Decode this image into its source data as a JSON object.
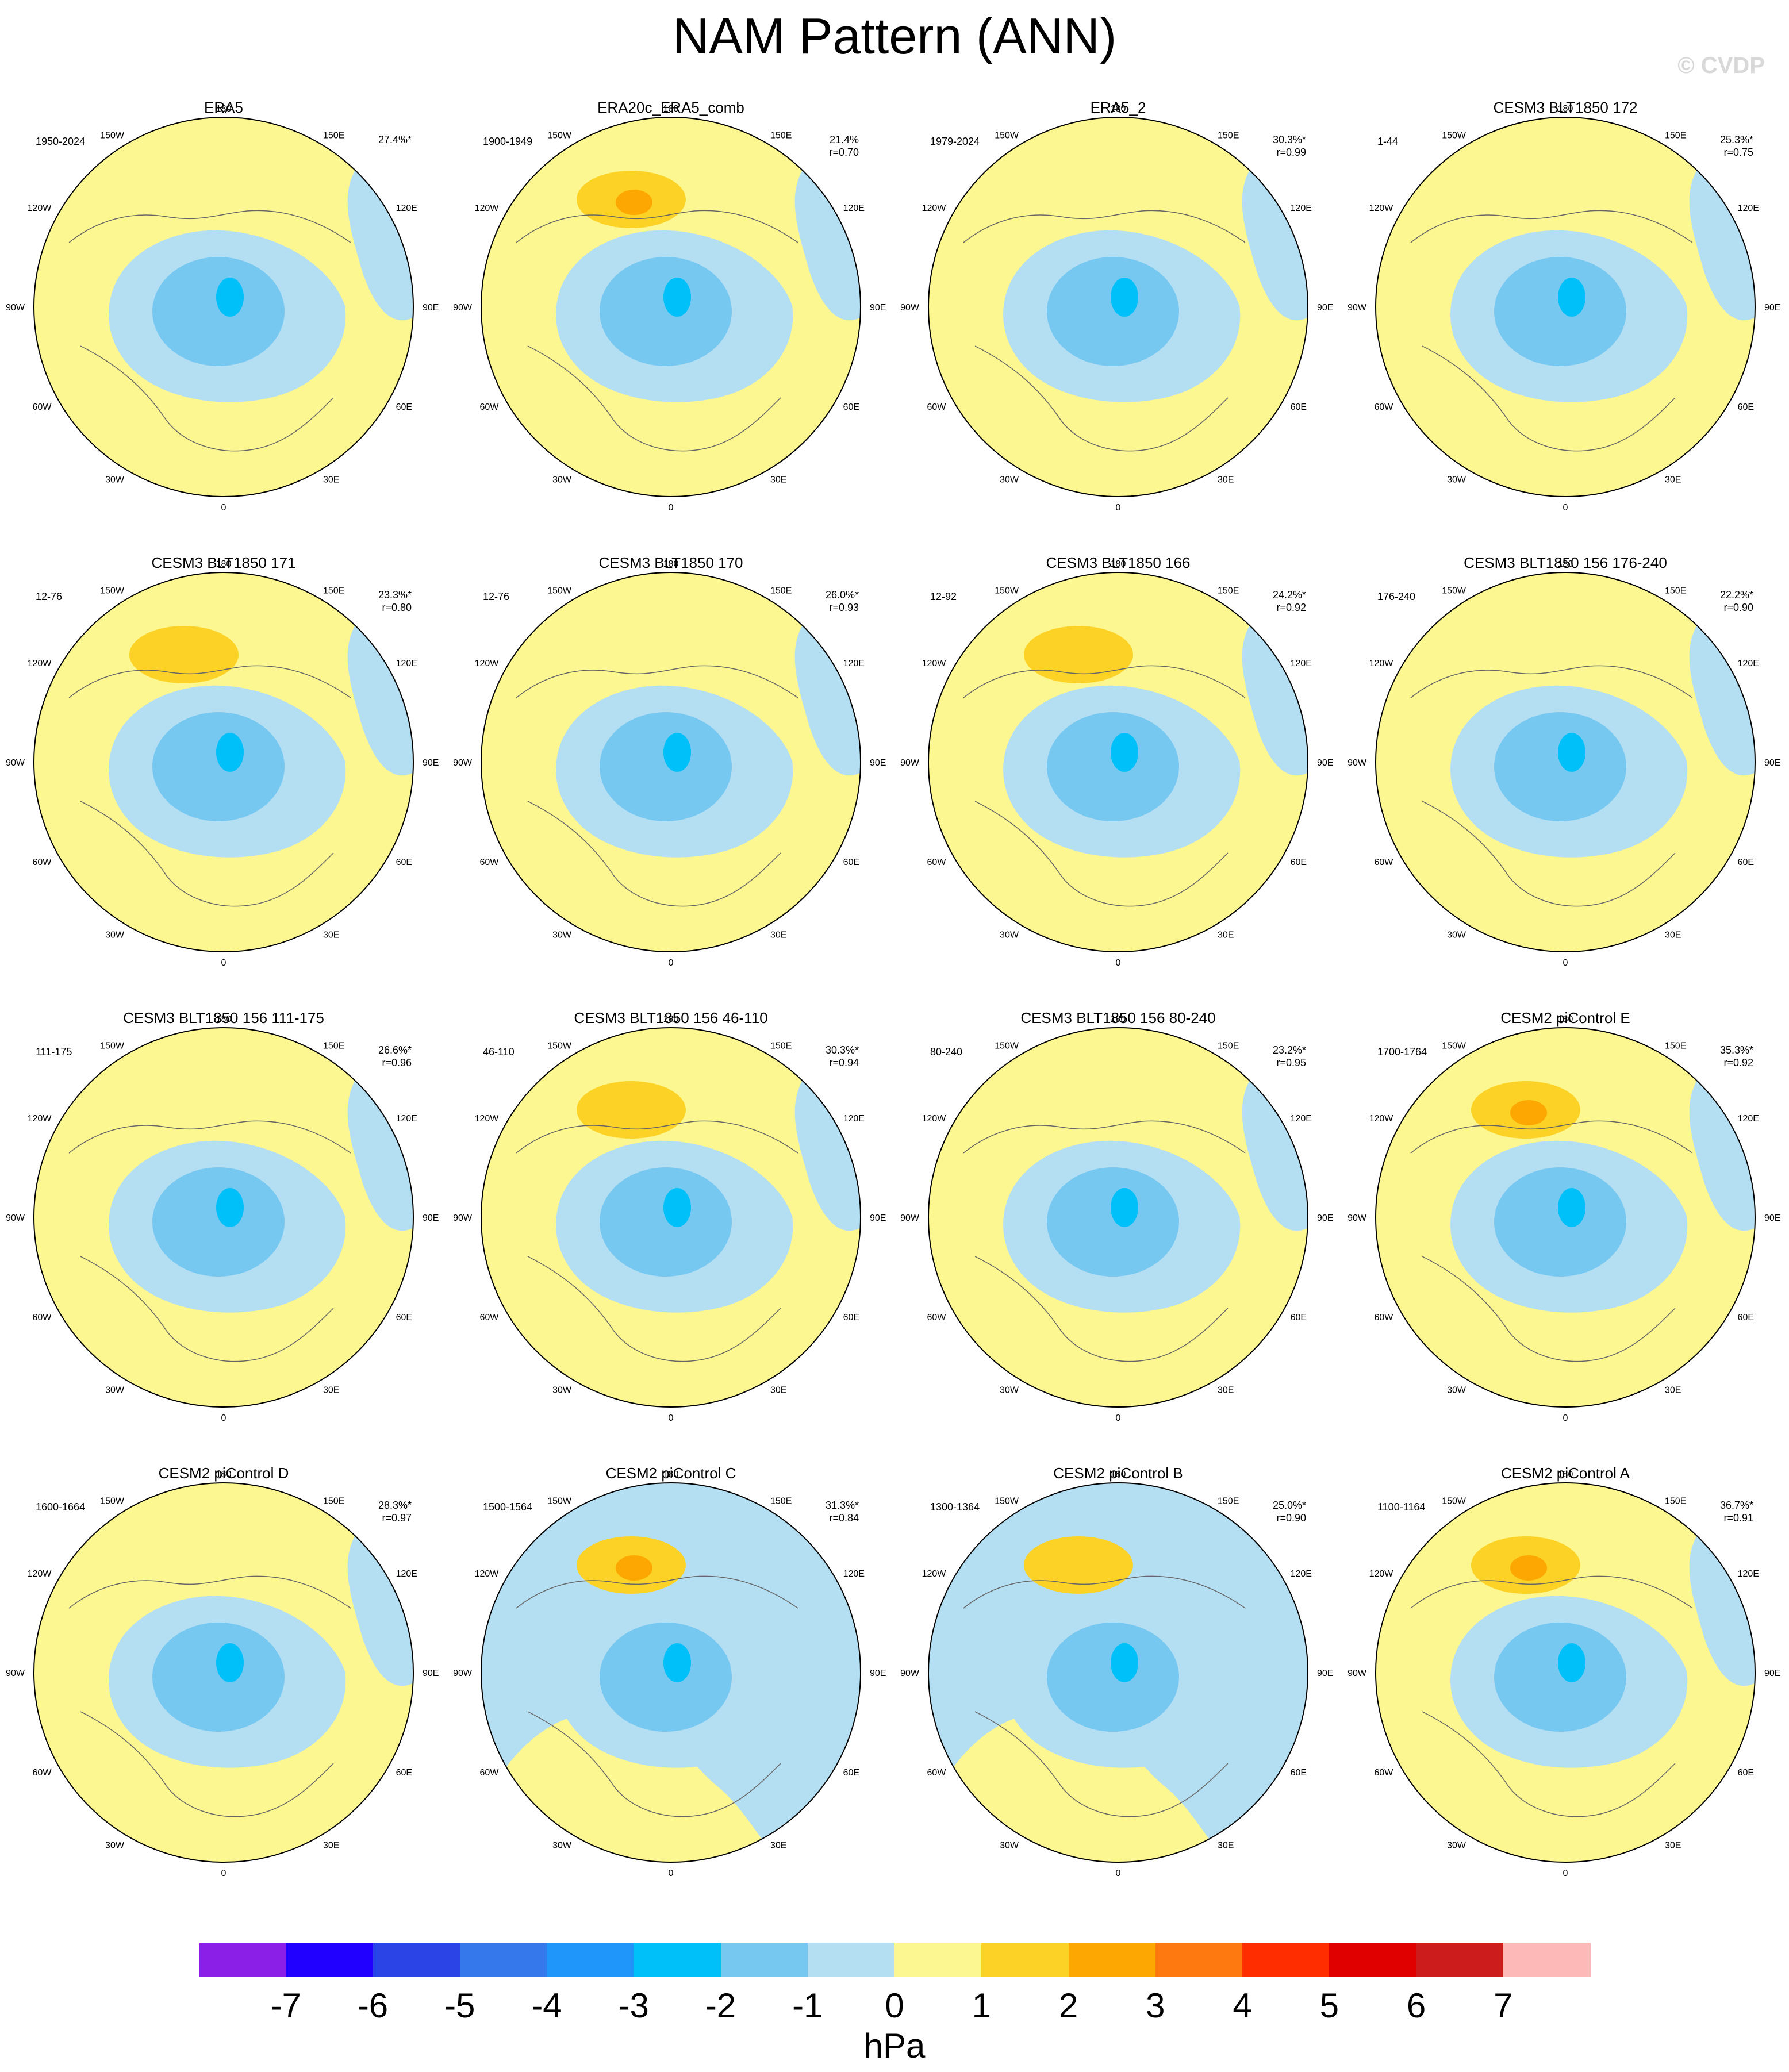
{
  "title": "NAM Pattern (ANN)",
  "watermark": "© CVDP",
  "units": "hPa",
  "map_labels": {
    "top": "180",
    "bottom": "0",
    "lon_150w": "150W",
    "lon_120w": "120W",
    "lon_90w": "90W",
    "lon_60w": "60W",
    "lon_30w": "30W",
    "lon_150e": "150E",
    "lon_120e": "120E",
    "lon_90e": "90E",
    "lon_60e": "60E",
    "lon_30e": "30E"
  },
  "colorbar": {
    "colors": [
      "#8b1fe8",
      "#2200ff",
      "#2b44e6",
      "#3578ec",
      "#1e96fa",
      "#00c0f9",
      "#77c8f1",
      "#b4def2",
      "#fdf791",
      "#fcd227",
      "#fda802",
      "#fe7a10",
      "#ff2d00",
      "#e00000",
      "#cc1c1c",
      "#fdb8b8"
    ],
    "tick_labels": [
      "-7",
      "-6",
      "-5",
      "-4",
      "-3",
      "-2",
      "-1",
      "0",
      "1",
      "2",
      "3",
      "4",
      "5",
      "6",
      "7"
    ]
  },
  "panels": [
    {
      "title": "ERA5",
      "period": "1950-2024",
      "pct": "27.4%*",
      "r": "",
      "row": 0,
      "col": 0,
      "bg": "yellow",
      "high": 0
    },
    {
      "title": "ERA20c_ERA5_comb",
      "period": "1900-1949",
      "pct": "21.4%",
      "r": "r=0.70",
      "row": 0,
      "col": 1,
      "bg": "yellow",
      "high": 2
    },
    {
      "title": "ERA5_2",
      "period": "1979-2024",
      "pct": "30.3%*",
      "r": "r=0.99",
      "row": 0,
      "col": 2,
      "bg": "yellow",
      "high": 0
    },
    {
      "title": "CESM3 BLT1850 172",
      "period": "1-44",
      "pct": "25.3%*",
      "r": "r=0.75",
      "row": 0,
      "col": 3,
      "bg": "yellow",
      "high": 0
    },
    {
      "title": "CESM3 BLT1850 171",
      "period": "12-76",
      "pct": "23.3%*",
      "r": "r=0.80",
      "row": 1,
      "col": 0,
      "bg": "yellow",
      "high": 1
    },
    {
      "title": "CESM3 BLT1850 170",
      "period": "12-76",
      "pct": "26.0%*",
      "r": "r=0.93",
      "row": 1,
      "col": 1,
      "bg": "yellow",
      "high": 0
    },
    {
      "title": "CESM3 BLT1850 166",
      "period": "12-92",
      "pct": "24.2%*",
      "r": "r=0.92",
      "row": 1,
      "col": 2,
      "bg": "yellow",
      "high": 1
    },
    {
      "title": "CESM3 BLT1850 156 176-240",
      "period": "176-240",
      "pct": "22.2%*",
      "r": "r=0.90",
      "row": 1,
      "col": 3,
      "bg": "yellow",
      "high": 0
    },
    {
      "title": "CESM3 BLT1850 156 111-175",
      "period": "111-175",
      "pct": "26.6%*",
      "r": "r=0.96",
      "row": 2,
      "col": 0,
      "bg": "yellow",
      "high": 0
    },
    {
      "title": "CESM3 BLT1850 156 46-110",
      "period": "46-110",
      "pct": "30.3%*",
      "r": "r=0.94",
      "row": 2,
      "col": 1,
      "bg": "yellow",
      "high": 1
    },
    {
      "title": "CESM3 BLT1850 156 80-240",
      "period": "80-240",
      "pct": "23.2%*",
      "r": "r=0.95",
      "row": 2,
      "col": 2,
      "bg": "yellow",
      "high": 0
    },
    {
      "title": "CESM2 piControl E",
      "period": "1700-1764",
      "pct": "35.3%*",
      "r": "r=0.92",
      "row": 2,
      "col": 3,
      "bg": "yellow",
      "high": 2
    },
    {
      "title": "CESM2 piControl D",
      "period": "1600-1664",
      "pct": "28.3%*",
      "r": "r=0.97",
      "row": 3,
      "col": 0,
      "bg": "yellow",
      "high": 0
    },
    {
      "title": "CESM2 piControl C",
      "period": "1500-1564",
      "pct": "31.3%*",
      "r": "r=0.84",
      "row": 3,
      "col": 1,
      "bg": "blue",
      "high": 2
    },
    {
      "title": "CESM2 piControl B",
      "period": "1300-1364",
      "pct": "25.0%*",
      "r": "r=0.90",
      "row": 3,
      "col": 2,
      "bg": "blue",
      "high": 1
    },
    {
      "title": "CESM2 piControl A",
      "period": "1100-1164",
      "pct": "36.7%*",
      "r": "r=0.91",
      "row": 3,
      "col": 3,
      "bg": "yellow",
      "high": 2
    }
  ]
}
